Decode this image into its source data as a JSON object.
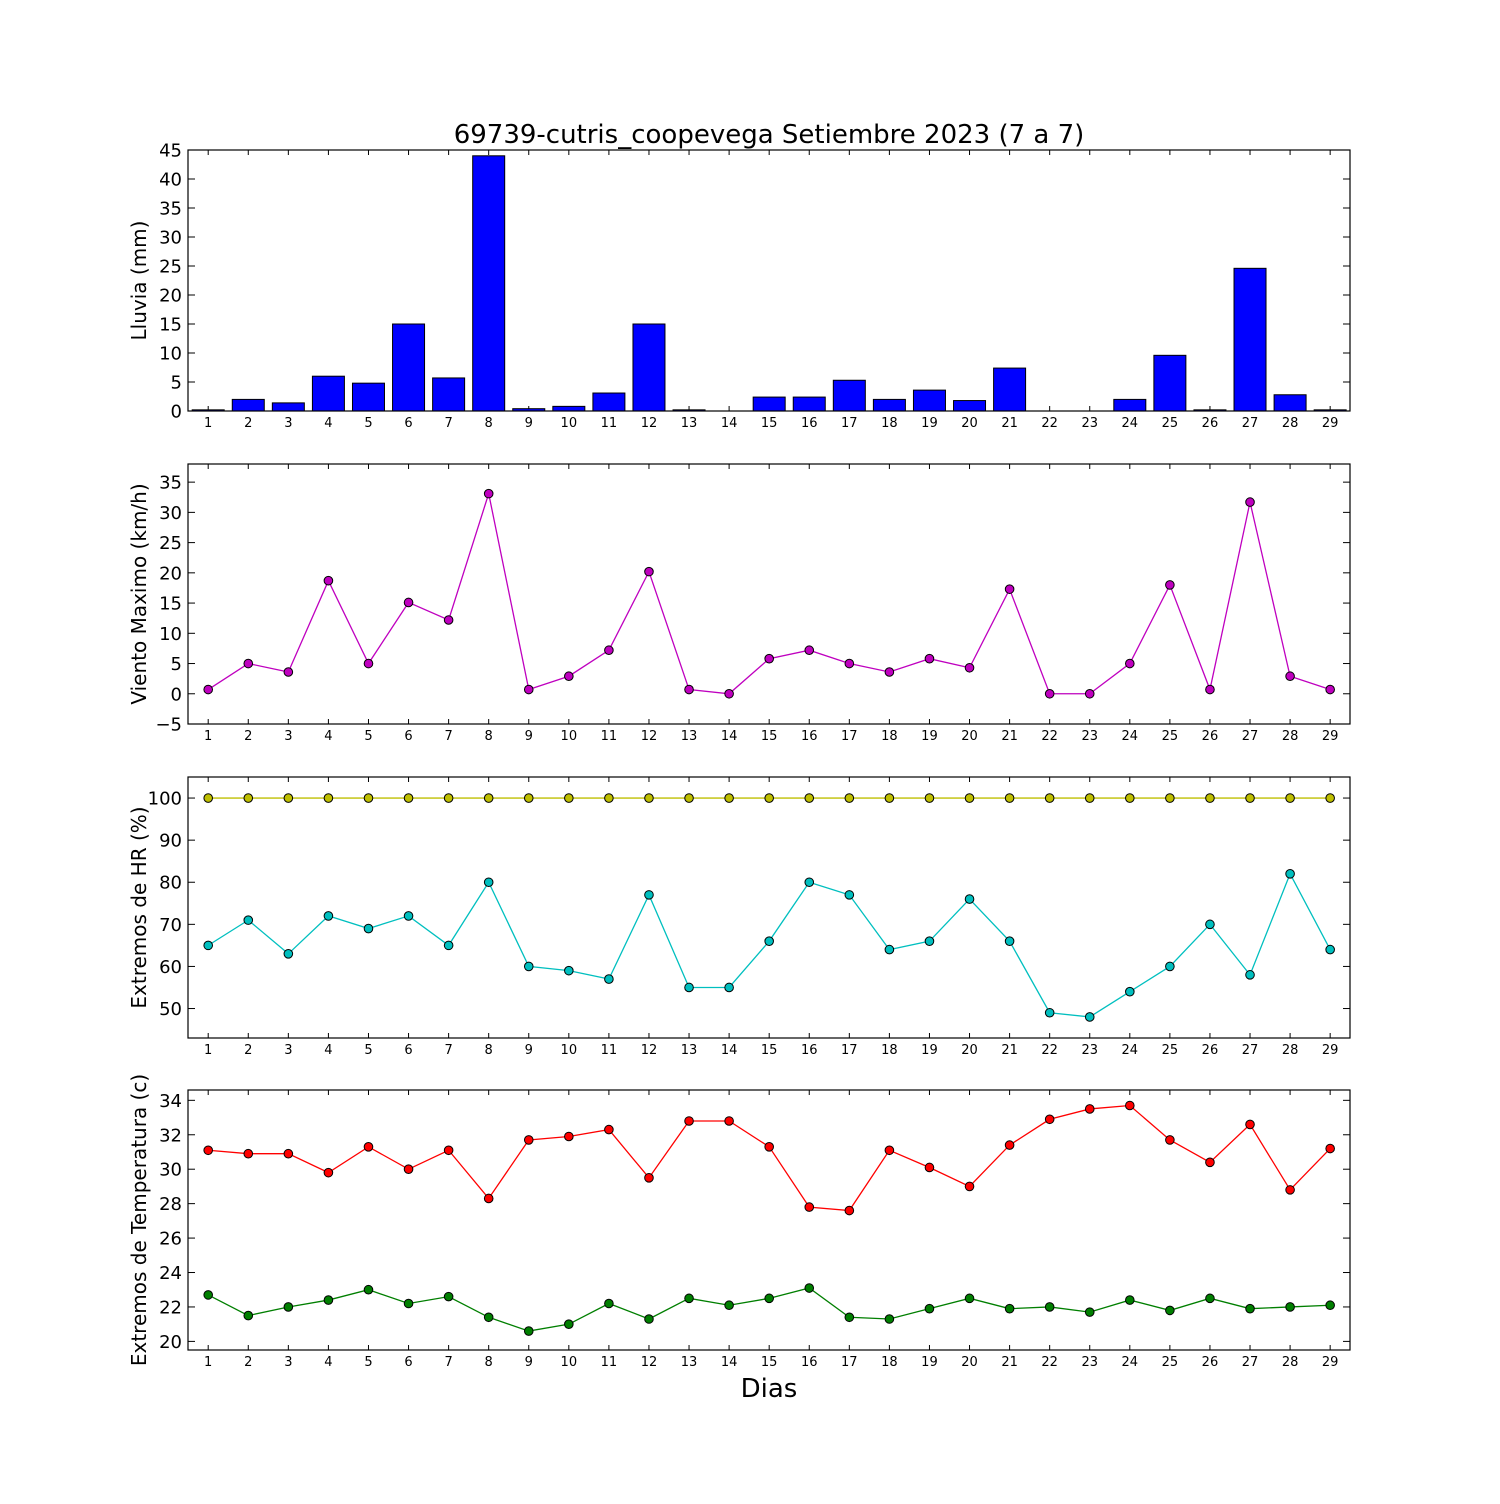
{
  "title": "69739-cutris_coopevega Setiembre 2023  (7 a 7)",
  "xlabel": "Dias",
  "days": [
    1,
    2,
    3,
    4,
    5,
    6,
    7,
    8,
    9,
    10,
    11,
    12,
    13,
    14,
    15,
    16,
    17,
    18,
    19,
    20,
    21,
    22,
    23,
    24,
    25,
    26,
    27,
    28,
    29
  ],
  "chart_data": [
    {
      "type": "bar",
      "ylabel": "Lluvia (mm)",
      "ylim": [
        0,
        45
      ],
      "yticks": [
        0,
        5,
        10,
        15,
        20,
        25,
        30,
        35,
        40,
        45
      ],
      "categories": [
        1,
        2,
        3,
        4,
        5,
        6,
        7,
        8,
        9,
        10,
        11,
        12,
        13,
        14,
        15,
        16,
        17,
        18,
        19,
        20,
        21,
        22,
        23,
        24,
        25,
        26,
        27,
        28,
        29
      ],
      "series": [
        {
          "color": "#0000ff",
          "values": [
            0.2,
            2.0,
            1.4,
            6.0,
            4.8,
            15.0,
            5.7,
            44.0,
            0.4,
            0.8,
            3.1,
            15.0,
            0.2,
            0.0,
            2.4,
            2.4,
            5.3,
            2.0,
            3.6,
            1.8,
            7.4,
            0.0,
            0.0,
            2.0,
            9.6,
            0.2,
            24.6,
            2.8,
            0.2
          ]
        }
      ]
    },
    {
      "type": "line",
      "ylabel": "Viento Maximo (km/h)",
      "ylim": [
        -5,
        38
      ],
      "yticks": [
        -5,
        0,
        5,
        10,
        15,
        20,
        25,
        30,
        35
      ],
      "x": [
        1,
        2,
        3,
        4,
        5,
        6,
        7,
        8,
        9,
        10,
        11,
        12,
        13,
        14,
        15,
        16,
        17,
        18,
        19,
        20,
        21,
        22,
        23,
        24,
        25,
        26,
        27,
        28,
        29
      ],
      "series": [
        {
          "color": "#bf00bf",
          "values": [
            0.7,
            5.0,
            3.6,
            18.7,
            5.0,
            15.1,
            12.2,
            33.1,
            0.7,
            2.9,
            7.2,
            20.2,
            0.7,
            0.0,
            5.8,
            7.2,
            5.0,
            3.6,
            5.8,
            4.3,
            17.3,
            0.0,
            0.0,
            5.0,
            18.0,
            0.7,
            31.7,
            2.9,
            0.7
          ]
        }
      ]
    },
    {
      "type": "line",
      "ylabel": "Extremos de HR (%)",
      "ylim": [
        43,
        105
      ],
      "yticks": [
        50,
        60,
        70,
        80,
        90,
        100
      ],
      "x": [
        1,
        2,
        3,
        4,
        5,
        6,
        7,
        8,
        9,
        10,
        11,
        12,
        13,
        14,
        15,
        16,
        17,
        18,
        19,
        20,
        21,
        22,
        23,
        24,
        25,
        26,
        27,
        28,
        29
      ],
      "series": [
        {
          "color": "#bfbf00",
          "values": [
            100,
            100,
            100,
            100,
            100,
            100,
            100,
            100,
            100,
            100,
            100,
            100,
            100,
            100,
            100,
            100,
            100,
            100,
            100,
            100,
            100,
            100,
            100,
            100,
            100,
            100,
            100,
            100,
            100
          ]
        },
        {
          "color": "#00bfbf",
          "values": [
            65,
            71,
            63,
            72,
            69,
            72,
            65,
            80,
            60,
            59,
            57,
            77,
            55,
            55,
            66,
            80,
            77,
            64,
            66,
            76,
            66,
            49,
            48,
            54,
            60,
            70,
            58,
            82,
            64
          ]
        }
      ]
    },
    {
      "type": "line",
      "ylabel": "Extremos de Temperatura (c)",
      "ylim": [
        19.5,
        34.6
      ],
      "yticks": [
        20,
        22,
        24,
        26,
        28,
        30,
        32,
        34
      ],
      "x": [
        1,
        2,
        3,
        4,
        5,
        6,
        7,
        8,
        9,
        10,
        11,
        12,
        13,
        14,
        15,
        16,
        17,
        18,
        19,
        20,
        21,
        22,
        23,
        24,
        25,
        26,
        27,
        28,
        29
      ],
      "series": [
        {
          "color": "#ff0000",
          "values": [
            31.1,
            30.9,
            30.9,
            29.8,
            31.3,
            30.0,
            31.1,
            28.3,
            31.7,
            31.9,
            32.3,
            29.5,
            32.8,
            32.8,
            31.3,
            27.8,
            27.6,
            31.1,
            30.1,
            29.0,
            31.4,
            32.9,
            33.5,
            33.7,
            31.7,
            30.4,
            32.6,
            28.8,
            31.2
          ]
        },
        {
          "color": "#007f00",
          "values": [
            22.7,
            21.5,
            22.0,
            22.4,
            23.0,
            22.2,
            22.6,
            21.4,
            20.6,
            21.0,
            22.2,
            21.3,
            22.5,
            22.1,
            22.5,
            23.1,
            21.4,
            21.3,
            21.9,
            22.5,
            21.9,
            22.0,
            21.7,
            22.4,
            21.8,
            22.5,
            21.9,
            22.0,
            22.1
          ]
        }
      ]
    }
  ]
}
